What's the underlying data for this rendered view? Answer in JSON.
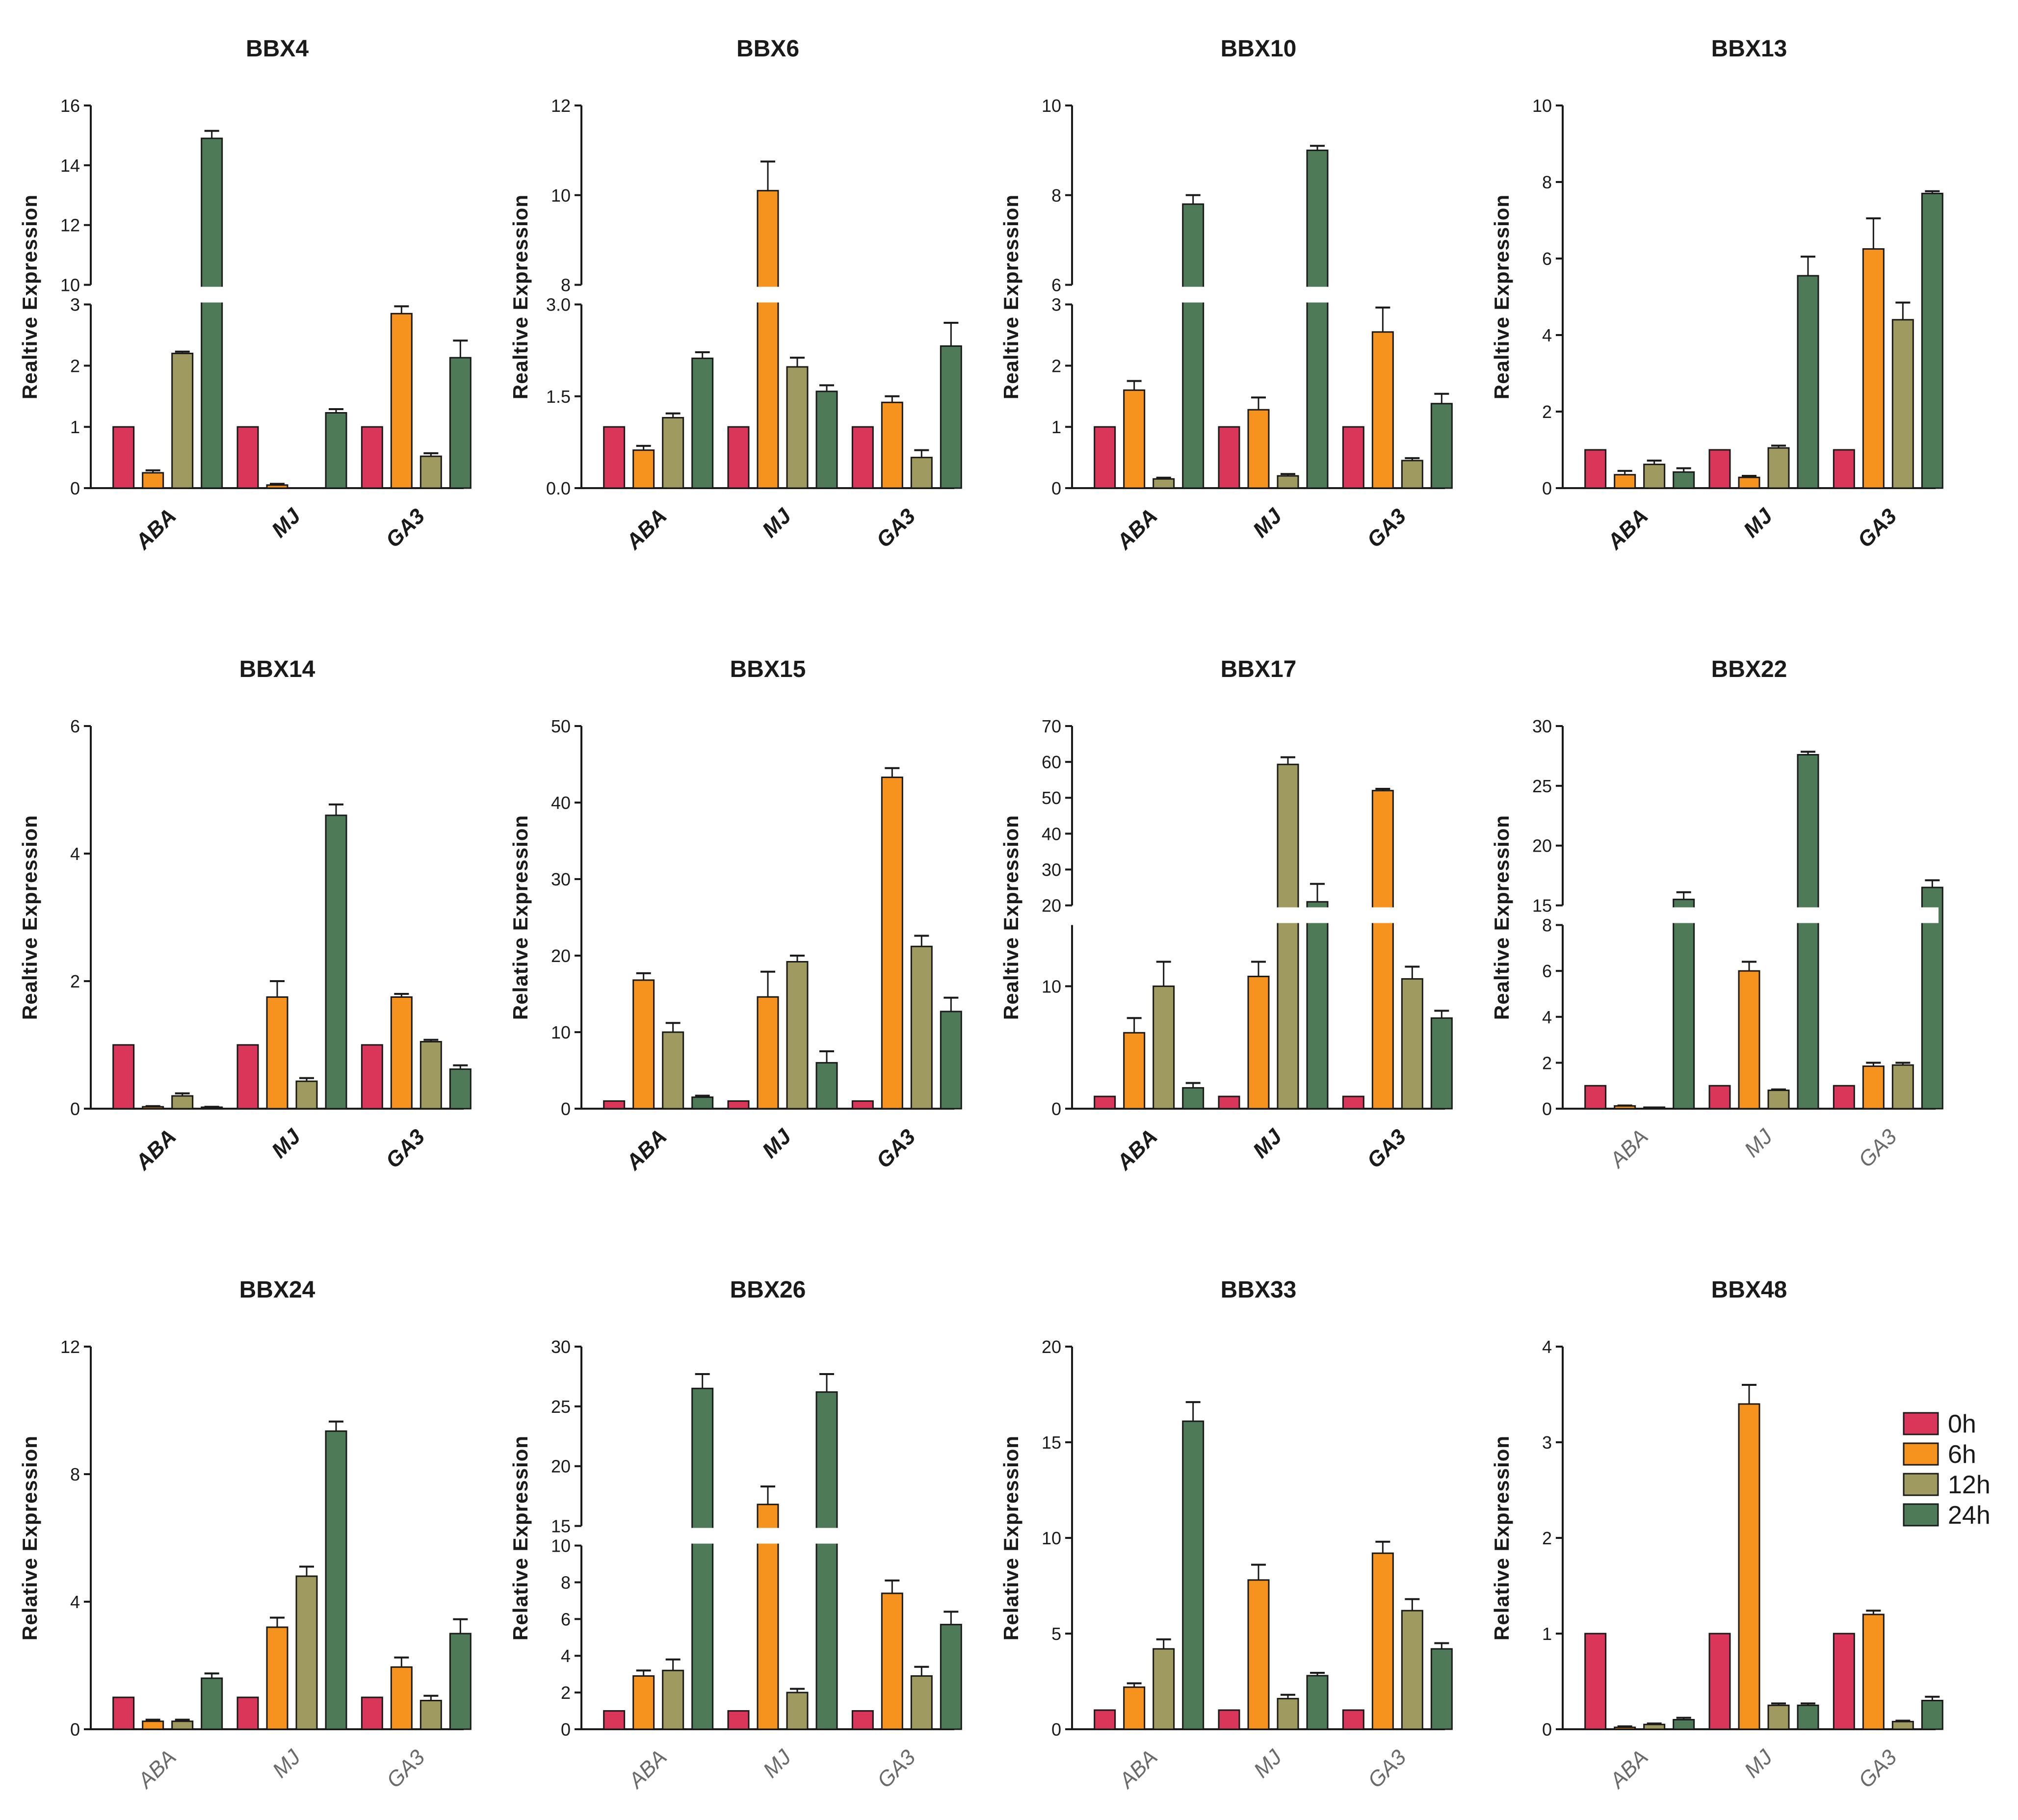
{
  "colors": {
    "0h": "#d9365a",
    "6h": "#f6921e",
    "12h": "#9f9a60",
    "24h": "#4f7a58"
  },
  "legend": [
    "0h",
    "6h",
    "12h",
    "24h"
  ],
  "chart_data": [
    {
      "type": "bar",
      "title": "BBX4",
      "ylabel": "Realtive Expression",
      "categories": [
        "ABA",
        "MJ",
        "GA3"
      ],
      "axis_break": {
        "lower": [
          0,
          3
        ],
        "upper": [
          10,
          16
        ]
      },
      "lower_ticks": [
        0,
        1,
        2,
        3
      ],
      "upper_ticks": [
        10,
        12,
        14,
        16
      ],
      "series": [
        {
          "name": "0h",
          "values": [
            1.0,
            1.0,
            1.0
          ],
          "errors": [
            0,
            0,
            0
          ]
        },
        {
          "name": "6h",
          "values": [
            0.25,
            0.05,
            2.85
          ],
          "errors": [
            0.04,
            0.02,
            0.12
          ]
        },
        {
          "name": "12h",
          "values": [
            2.2,
            0.0,
            0.52
          ],
          "errors": [
            0.03,
            0,
            0.05
          ]
        },
        {
          "name": "24h",
          "values": [
            14.9,
            1.23,
            2.13
          ],
          "errors": [
            0.25,
            0.06,
            0.28
          ]
        }
      ]
    },
    {
      "type": "bar",
      "title": "BBX6",
      "ylabel": "Realtive Expression",
      "categories": [
        "ABA",
        "MJ",
        "GA3"
      ],
      "axis_break": {
        "lower": [
          0,
          3
        ],
        "upper": [
          8,
          12
        ]
      },
      "lower_ticks": [
        "0.0",
        "1.5",
        "3.0"
      ],
      "upper_ticks": [
        8,
        10,
        12
      ],
      "series": [
        {
          "name": "0h",
          "values": [
            1.0,
            1.0,
            1.0
          ],
          "errors": [
            0,
            0,
            0
          ]
        },
        {
          "name": "6h",
          "values": [
            0.62,
            10.1,
            1.4
          ],
          "errors": [
            0.07,
            0.65,
            0.1
          ]
        },
        {
          "name": "12h",
          "values": [
            1.15,
            1.98,
            0.5
          ],
          "errors": [
            0.07,
            0.15,
            0.12
          ]
        },
        {
          "name": "24h",
          "values": [
            2.12,
            1.58,
            2.32
          ],
          "errors": [
            0.1,
            0.1,
            0.38
          ]
        }
      ]
    },
    {
      "type": "bar",
      "title": "BBX10",
      "ylabel": "Realtive Expression",
      "categories": [
        "ABA",
        "MJ",
        "GA3"
      ],
      "axis_break": {
        "lower": [
          0,
          3
        ],
        "upper": [
          6,
          10
        ]
      },
      "lower_ticks": [
        0,
        1,
        2,
        3
      ],
      "upper_ticks": [
        6,
        8,
        10
      ],
      "series": [
        {
          "name": "0h",
          "values": [
            1.0,
            1.0,
            1.0
          ],
          "errors": [
            0,
            0,
            0
          ]
        },
        {
          "name": "6h",
          "values": [
            1.6,
            1.28,
            2.55
          ],
          "errors": [
            0.15,
            0.2,
            0.4
          ]
        },
        {
          "name": "12h",
          "values": [
            0.15,
            0.2,
            0.45
          ],
          "errors": [
            0.02,
            0.03,
            0.04
          ]
        },
        {
          "name": "24h",
          "values": [
            7.8,
            9.0,
            1.38
          ],
          "errors": [
            0.2,
            0.1,
            0.16
          ]
        }
      ]
    },
    {
      "type": "bar",
      "title": "BBX13",
      "ylabel": "Realtive Expression",
      "categories": [
        "ABA",
        "MJ",
        "GA3"
      ],
      "ylim": [
        0,
        10
      ],
      "ticks": [
        0,
        2,
        4,
        6,
        8,
        10
      ],
      "series": [
        {
          "name": "0h",
          "values": [
            1.0,
            1.0,
            1.0
          ],
          "errors": [
            0,
            0,
            0
          ]
        },
        {
          "name": "6h",
          "values": [
            0.35,
            0.28,
            6.25
          ],
          "errors": [
            0.1,
            0.04,
            0.8
          ]
        },
        {
          "name": "12h",
          "values": [
            0.62,
            1.05,
            4.4
          ],
          "errors": [
            0.1,
            0.06,
            0.45
          ]
        },
        {
          "name": "24h",
          "values": [
            0.42,
            5.55,
            7.7
          ],
          "errors": [
            0.1,
            0.5,
            0.06
          ]
        }
      ]
    },
    {
      "type": "bar",
      "title": "BBX14",
      "ylabel": "Realtive Expression",
      "categories": [
        "ABA",
        "MJ",
        "GA3"
      ],
      "ylim": [
        0,
        6
      ],
      "ticks": [
        0,
        2,
        4,
        6
      ],
      "series": [
        {
          "name": "0h",
          "values": [
            1.0,
            1.0,
            1.0
          ],
          "errors": [
            0,
            0,
            0
          ]
        },
        {
          "name": "6h",
          "values": [
            0.03,
            1.75,
            1.75
          ],
          "errors": [
            0.01,
            0.25,
            0.05
          ]
        },
        {
          "name": "12h",
          "values": [
            0.2,
            0.43,
            1.05
          ],
          "errors": [
            0.04,
            0.05,
            0.03
          ]
        },
        {
          "name": "24h",
          "values": [
            0.02,
            4.6,
            0.62
          ],
          "errors": [
            0.01,
            0.17,
            0.06
          ]
        }
      ]
    },
    {
      "type": "bar",
      "title": "BBX15",
      "ylabel": "Relative Expression",
      "categories": [
        "ABA",
        "MJ",
        "GA3"
      ],
      "ylim": [
        0,
        50
      ],
      "ticks": [
        0,
        10,
        20,
        30,
        40,
        50
      ],
      "series": [
        {
          "name": "0h",
          "values": [
            1.0,
            1.0,
            1.0
          ],
          "errors": [
            0,
            0,
            0
          ]
        },
        {
          "name": "6h",
          "values": [
            16.8,
            14.6,
            43.3
          ],
          "errors": [
            0.9,
            3.3,
            1.2
          ]
        },
        {
          "name": "12h",
          "values": [
            10.0,
            19.2,
            21.2
          ],
          "errors": [
            1.2,
            0.8,
            1.4
          ]
        },
        {
          "name": "24h",
          "values": [
            1.5,
            6.0,
            12.7
          ],
          "errors": [
            0.2,
            1.5,
            1.8
          ]
        }
      ]
    },
    {
      "type": "bar",
      "title": "BBX17",
      "ylabel": "Realtive Expression",
      "categories": [
        "ABA",
        "MJ",
        "GA3"
      ],
      "axis_break": {
        "lower": [
          0,
          15
        ],
        "upper": [
          20,
          70
        ]
      },
      "lower_ticks": [
        0,
        10
      ],
      "upper_ticks": [
        20,
        30,
        40,
        50,
        60,
        70
      ],
      "series": [
        {
          "name": "0h",
          "values": [
            1.0,
            1.0,
            1.0
          ],
          "errors": [
            0,
            0,
            0
          ]
        },
        {
          "name": "6h",
          "values": [
            6.2,
            10.8,
            52.0
          ],
          "errors": [
            1.2,
            1.2,
            0.5
          ]
        },
        {
          "name": "12h",
          "values": [
            10.0,
            59.3,
            10.6
          ],
          "errors": [
            2.0,
            2.0,
            1.0
          ]
        },
        {
          "name": "24h",
          "values": [
            1.7,
            21.0,
            7.4
          ],
          "errors": [
            0.4,
            5.0,
            0.6
          ]
        }
      ]
    },
    {
      "type": "bar",
      "title": "BBX22",
      "ylabel": "Realtive Expression",
      "categories": [
        "ABA",
        "MJ",
        "GA3"
      ],
      "axis_break": {
        "lower": [
          0,
          8
        ],
        "upper": [
          15,
          30
        ]
      },
      "lower_ticks": [
        0,
        2,
        4,
        6,
        8
      ],
      "upper_ticks": [
        15,
        20,
        25,
        30
      ],
      "series": [
        {
          "name": "0h",
          "values": [
            1.0,
            1.0,
            1.0
          ],
          "errors": [
            0,
            0,
            0
          ]
        },
        {
          "name": "6h",
          "values": [
            0.12,
            6.0,
            1.85
          ],
          "errors": [
            0.02,
            0.4,
            0.15
          ]
        },
        {
          "name": "12h",
          "values": [
            0.04,
            0.8,
            1.9
          ],
          "errors": [
            0.01,
            0.04,
            0.1
          ]
        },
        {
          "name": "24h",
          "values": [
            15.5,
            27.6,
            16.5
          ],
          "errors": [
            0.6,
            0.25,
            0.6
          ]
        }
      ]
    },
    {
      "type": "bar",
      "title": "BBX24",
      "ylabel": "Relative Expression",
      "categories": [
        "ABA",
        "MJ",
        "GA3"
      ],
      "ylim": [
        0,
        12
      ],
      "ticks": [
        0,
        4,
        8,
        12
      ],
      "series": [
        {
          "name": "0h",
          "values": [
            1.0,
            1.0,
            1.0
          ],
          "errors": [
            0,
            0,
            0
          ]
        },
        {
          "name": "6h",
          "values": [
            0.25,
            3.2,
            1.95
          ],
          "errors": [
            0.05,
            0.3,
            0.3
          ]
        },
        {
          "name": "12h",
          "values": [
            0.25,
            4.8,
            0.9
          ],
          "errors": [
            0.05,
            0.3,
            0.15
          ]
        },
        {
          "name": "24h",
          "values": [
            1.6,
            9.35,
            3.0
          ],
          "errors": [
            0.15,
            0.3,
            0.45
          ]
        }
      ]
    },
    {
      "type": "bar",
      "title": "BBX26",
      "ylabel": "Relative Expression",
      "categories": [
        "ABA",
        "MJ",
        "GA3"
      ],
      "axis_break": {
        "lower": [
          0,
          10
        ],
        "upper": [
          15,
          30
        ]
      },
      "lower_ticks": [
        0,
        2,
        4,
        6,
        8,
        10
      ],
      "upper_ticks": [
        15,
        20,
        25,
        30
      ],
      "series": [
        {
          "name": "0h",
          "values": [
            1.0,
            1.0,
            1.0
          ],
          "errors": [
            0,
            0,
            0
          ]
        },
        {
          "name": "6h",
          "values": [
            2.9,
            16.8,
            7.4
          ],
          "errors": [
            0.3,
            1.5,
            0.7
          ]
        },
        {
          "name": "12h",
          "values": [
            3.2,
            2.0,
            2.9
          ],
          "errors": [
            0.6,
            0.2,
            0.5
          ]
        },
        {
          "name": "24h",
          "values": [
            26.5,
            26.2,
            5.7
          ],
          "errors": [
            1.2,
            1.5,
            0.7
          ]
        }
      ]
    },
    {
      "type": "bar",
      "title": "BBX33",
      "ylabel": "Relative Expression",
      "categories": [
        "ABA",
        "MJ",
        "GA3"
      ],
      "ylim": [
        0,
        20
      ],
      "ticks": [
        0,
        5,
        10,
        15,
        20
      ],
      "series": [
        {
          "name": "0h",
          "values": [
            1.0,
            1.0,
            1.0
          ],
          "errors": [
            0,
            0,
            0
          ]
        },
        {
          "name": "6h",
          "values": [
            2.2,
            7.8,
            9.2
          ],
          "errors": [
            0.2,
            0.8,
            0.6
          ]
        },
        {
          "name": "12h",
          "values": [
            4.2,
            1.6,
            6.2
          ],
          "errors": [
            0.5,
            0.2,
            0.6
          ]
        },
        {
          "name": "24h",
          "values": [
            16.1,
            2.8,
            4.2
          ],
          "errors": [
            1.0,
            0.15,
            0.3
          ]
        }
      ]
    },
    {
      "type": "bar",
      "title": "BBX48",
      "ylabel": "Relative Expression",
      "categories": [
        "ABA",
        "MJ",
        "GA3"
      ],
      "ylim": [
        0,
        4
      ],
      "ticks": [
        0,
        1,
        2,
        3,
        4
      ],
      "series": [
        {
          "name": "0h",
          "values": [
            1.0,
            1.0,
            1.0
          ],
          "errors": [
            0,
            0,
            0
          ]
        },
        {
          "name": "6h",
          "values": [
            0.02,
            3.4,
            1.2
          ],
          "errors": [
            0.01,
            0.2,
            0.04
          ]
        },
        {
          "name": "12h",
          "values": [
            0.05,
            0.25,
            0.08
          ],
          "errors": [
            0.01,
            0.02,
            0.01
          ]
        },
        {
          "name": "24h",
          "values": [
            0.1,
            0.25,
            0.3
          ],
          "errors": [
            0.02,
            0.02,
            0.04
          ]
        }
      ]
    }
  ]
}
